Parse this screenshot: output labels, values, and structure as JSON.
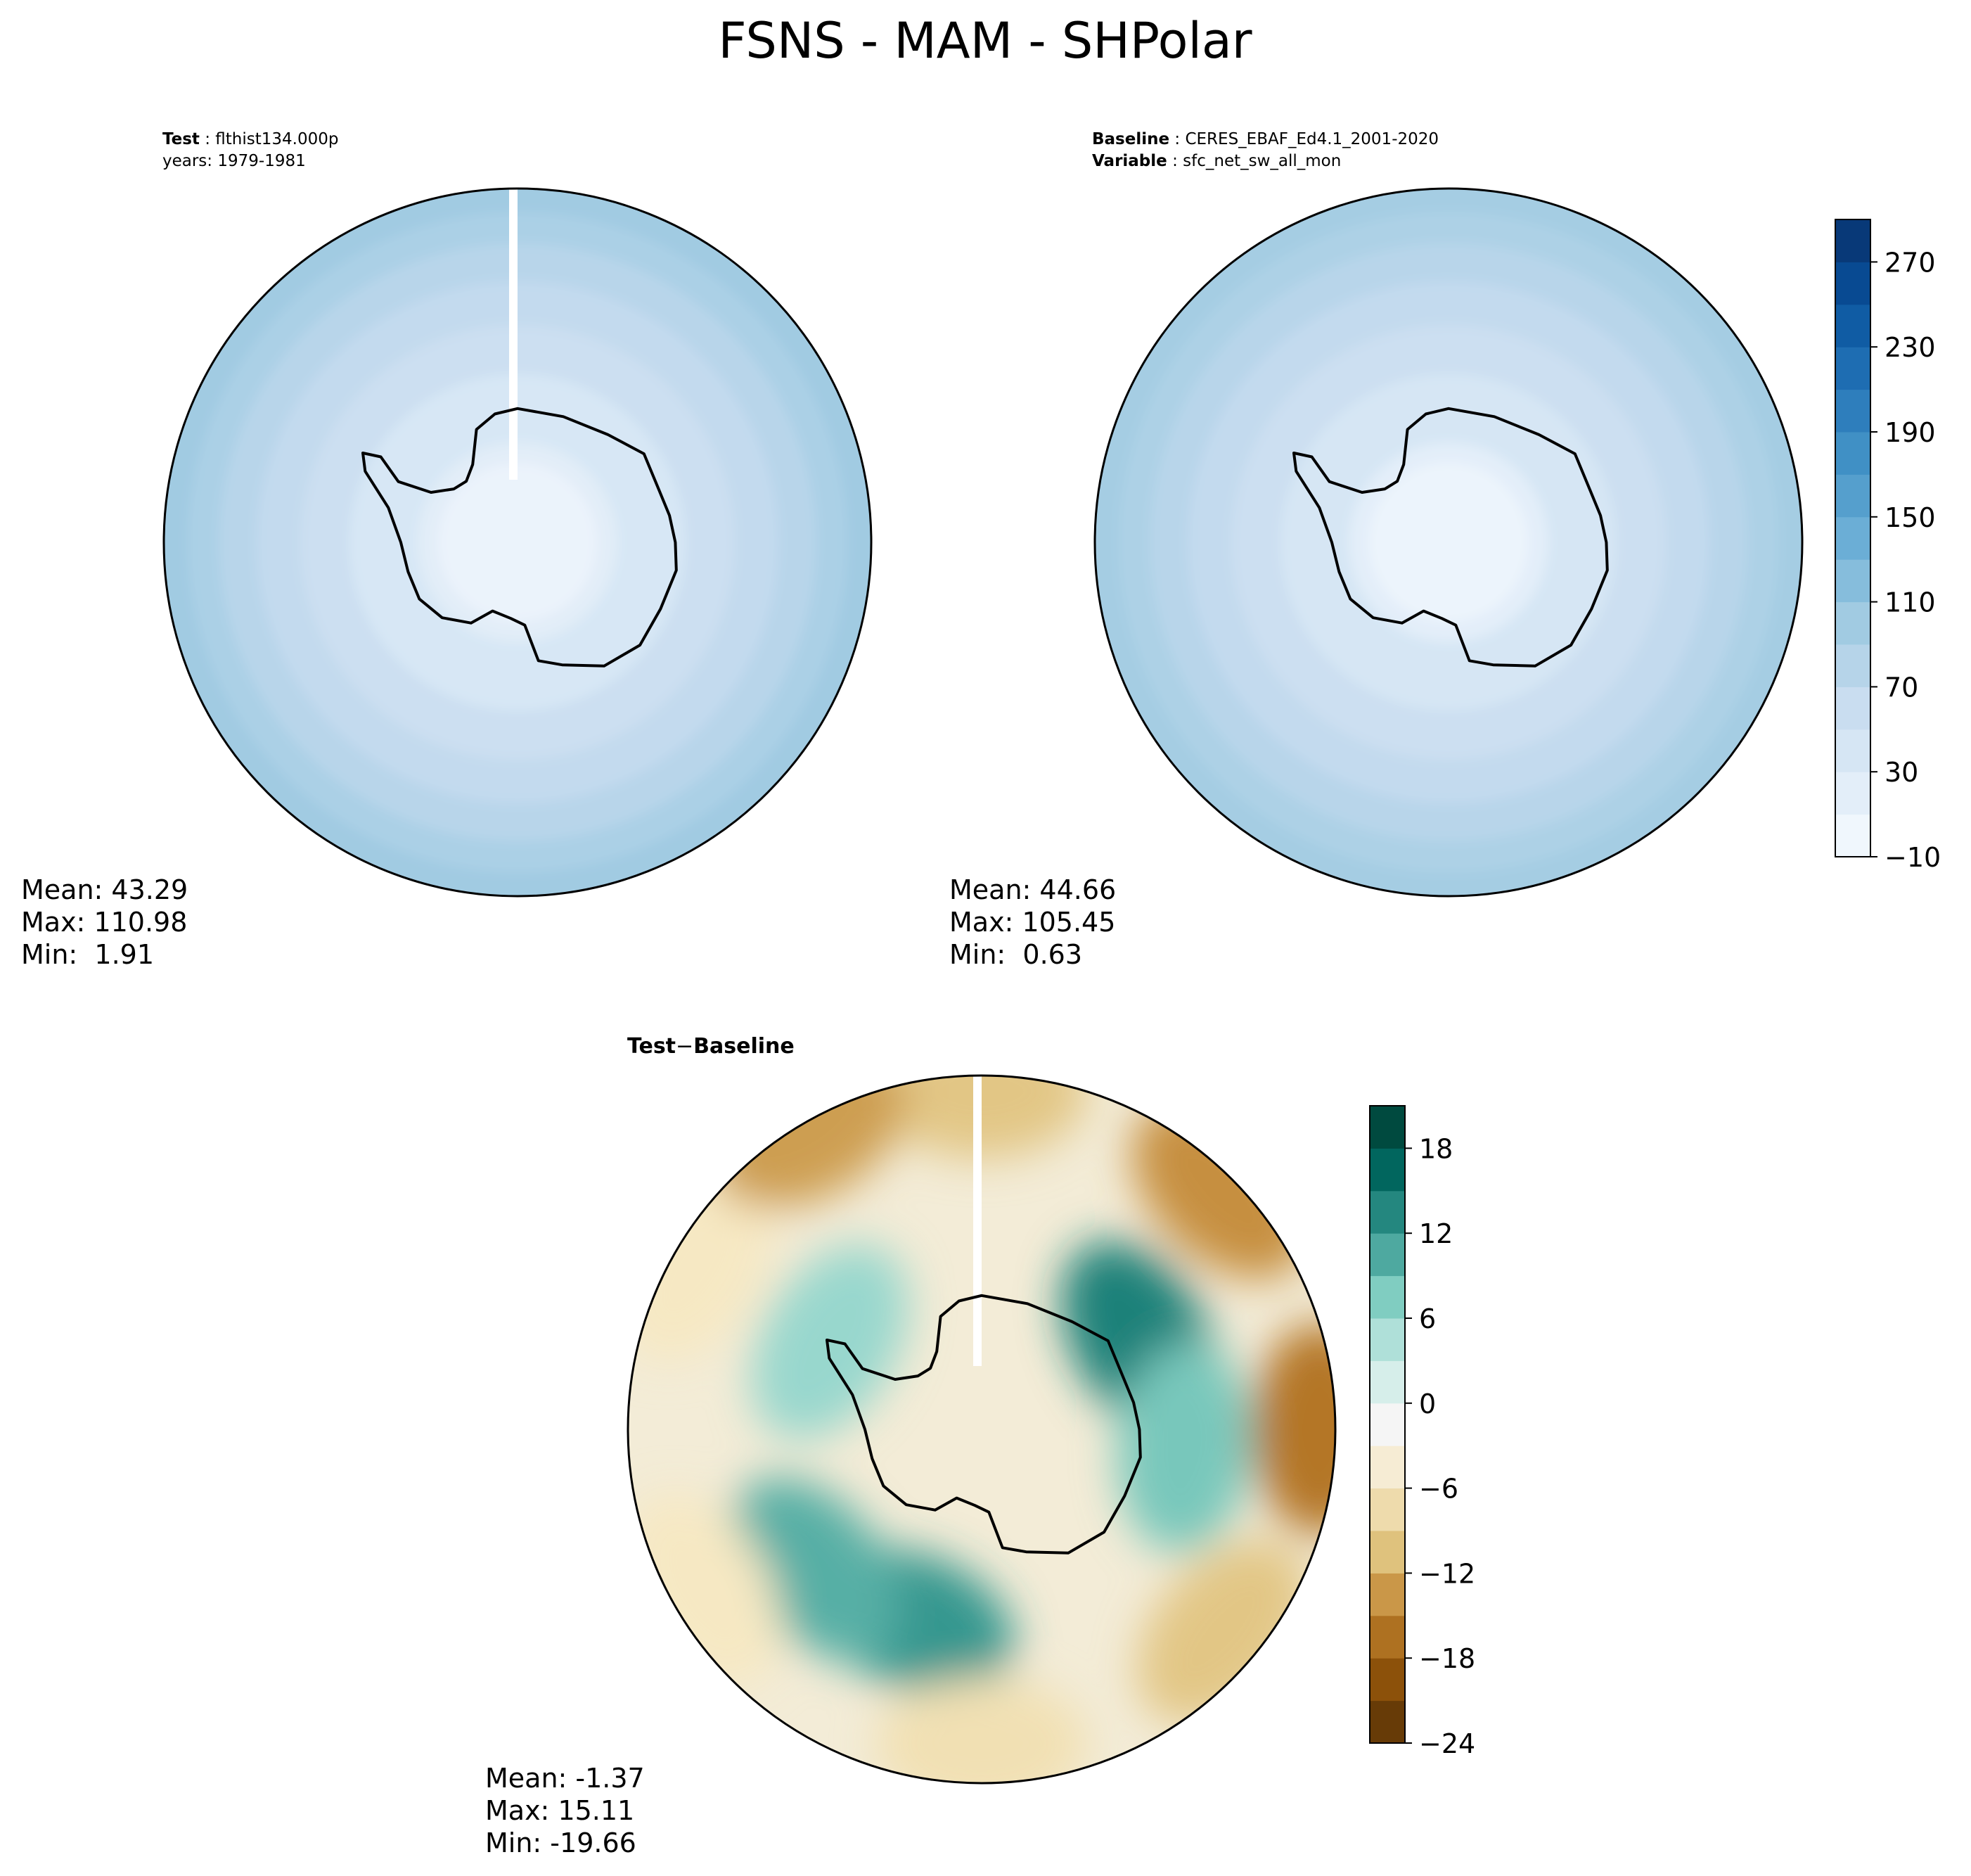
{
  "title": "FSNS - MAM - SHPolar",
  "chart_data": [
    {
      "type": "heatmap",
      "panel": "test",
      "header": {
        "key": "Test",
        "value": "flthist134.000p",
        "line2": "years: 1979-1981"
      },
      "stats": {
        "mean": "Mean: 43.29",
        "max": "Max: 110.98",
        "min": "Min:  1.91"
      },
      "field_rings": [
        {
          "lat": -90,
          "value": 8
        },
        {
          "lat": -75,
          "value": 22
        },
        {
          "lat": -65,
          "value": 38
        },
        {
          "lat": -58,
          "value": 55
        },
        {
          "lat": -52,
          "value": 68
        },
        {
          "lat": -47,
          "value": 78
        },
        {
          "lat": -43,
          "value": 90
        },
        {
          "lat": -40,
          "value": 100
        }
      ]
    },
    {
      "type": "heatmap",
      "panel": "baseline",
      "header": {
        "key1": "Baseline",
        "value1": "CERES_EBAF_Ed4.1_2001-2020",
        "key2": "Variable",
        "value2": "sfc_net_sw_all_mon"
      },
      "stats": {
        "mean": "Mean: 44.66",
        "max": "Max: 105.45",
        "min": "Min:  0.63"
      },
      "field_rings": [
        {
          "lat": -90,
          "value": 6
        },
        {
          "lat": -75,
          "value": 20
        },
        {
          "lat": -65,
          "value": 40
        },
        {
          "lat": -58,
          "value": 56
        },
        {
          "lat": -52,
          "value": 68
        },
        {
          "lat": -47,
          "value": 78
        },
        {
          "lat": -43,
          "value": 88
        },
        {
          "lat": -40,
          "value": 96
        }
      ],
      "colorbar": {
        "colormap": "Blues",
        "range": [
          -10,
          290
        ],
        "ticks": [
          "270",
          "230",
          "190",
          "150",
          "110",
          "70",
          "30",
          "−10"
        ],
        "tick_values": [
          270,
          230,
          190,
          150,
          110,
          70,
          30,
          -10
        ],
        "levels": 15
      }
    },
    {
      "type": "heatmap",
      "panel": "difference",
      "header": {
        "key": "Test",
        "op": "−",
        "key2": "Baseline"
      },
      "stats": {
        "mean": "Mean: -1.37",
        "max": "Max: 15.11",
        "min": "Min: -19.66"
      },
      "anomalies": [
        {
          "lon": 60,
          "lat": -63,
          "value": 14
        },
        {
          "lon": 95,
          "lat": -60,
          "value": 8
        },
        {
          "lon": 200,
          "lat": -60,
          "value": 12
        },
        {
          "lon": 230,
          "lat": -58,
          "value": 10
        },
        {
          "lon": 300,
          "lat": -64,
          "value": 6
        },
        {
          "lon": 0,
          "lat": -42,
          "value": -10
        },
        {
          "lon": 45,
          "lat": -42,
          "value": -14
        },
        {
          "lon": 90,
          "lat": -42,
          "value": -16
        },
        {
          "lon": 130,
          "lat": -45,
          "value": -10
        },
        {
          "lon": 180,
          "lat": -45,
          "value": -7
        },
        {
          "lon": 240,
          "lat": -44,
          "value": -6
        },
        {
          "lon": 300,
          "lat": -43,
          "value": -6
        },
        {
          "lon": 330,
          "lat": -41,
          "value": -13
        }
      ],
      "colorbar": {
        "colormap": "BrBG",
        "range": [
          -24,
          21
        ],
        "ticks": [
          "18",
          "12",
          "6",
          "0",
          "−6",
          "−12",
          "−18",
          "−24"
        ],
        "tick_values": [
          18,
          12,
          6,
          0,
          -6,
          -12,
          -18,
          -24
        ],
        "levels": 15
      }
    }
  ]
}
